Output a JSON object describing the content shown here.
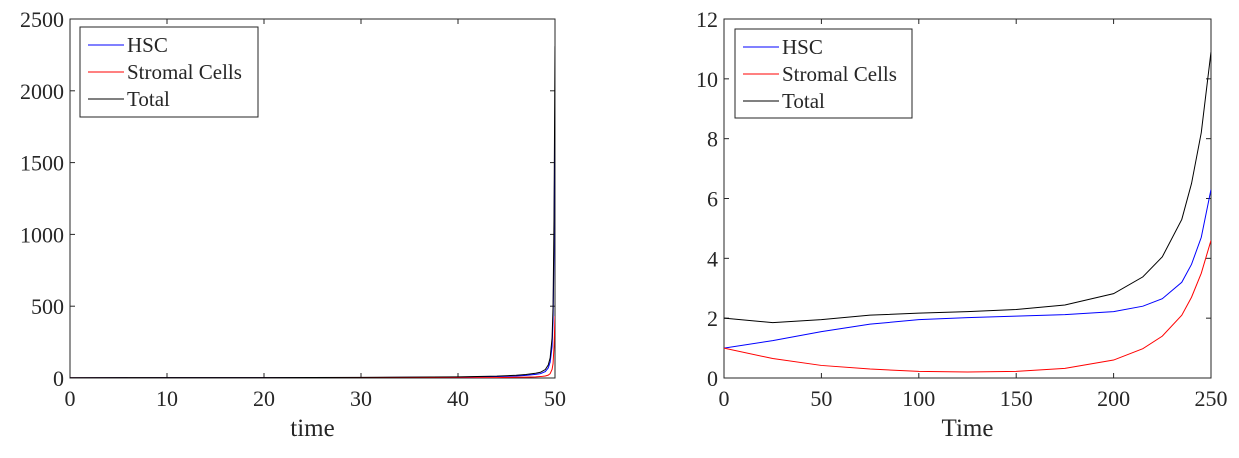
{
  "chart_data": [
    {
      "type": "line",
      "title": "",
      "xlabel": "time",
      "ylabel": "",
      "xlim": [
        0,
        50
      ],
      "ylim": [
        0,
        2500
      ],
      "xticks": [
        0,
        10,
        20,
        30,
        40,
        50
      ],
      "yticks": [
        0,
        500,
        1000,
        1500,
        2000,
        2500
      ],
      "grid": false,
      "legend": "top-left",
      "series": [
        {
          "name": "HSC",
          "color": "#0000ff",
          "x": [
            0,
            10,
            20,
            30,
            40,
            44,
            46,
            47,
            48,
            48.5,
            49,
            49.3,
            49.5,
            49.7,
            49.8,
            49.9,
            49.95,
            50
          ],
          "y": [
            1,
            1.5,
            2,
            3,
            6,
            10,
            14,
            18,
            25,
            30,
            45,
            70,
            110,
            220,
            400,
            900,
            1400,
            1880
          ]
        },
        {
          "name": "Stromal Cells",
          "color": "#ff0000",
          "x": [
            0,
            10,
            20,
            30,
            40,
            44,
            46,
            47,
            48,
            48.5,
            49,
            49.3,
            49.5,
            49.7,
            49.8,
            49.9,
            49.95,
            50
          ],
          "y": [
            1,
            0.8,
            0.8,
            1,
            2,
            3,
            5,
            6,
            8,
            10,
            14,
            20,
            30,
            60,
            100,
            220,
            320,
            430
          ]
        },
        {
          "name": "Total",
          "color": "#000000",
          "x": [
            0,
            10,
            20,
            30,
            40,
            44,
            46,
            47,
            48,
            48.5,
            49,
            49.3,
            49.5,
            49.7,
            49.8,
            49.9,
            49.95,
            50
          ],
          "y": [
            2,
            2.3,
            2.8,
            4,
            8,
            13,
            19,
            24,
            33,
            40,
            59,
            90,
            140,
            280,
            500,
            1120,
            1720,
            2310
          ]
        }
      ]
    },
    {
      "type": "line",
      "title": "",
      "xlabel": "Time",
      "ylabel": "",
      "xlim": [
        0,
        250
      ],
      "ylim": [
        0,
        12
      ],
      "xticks": [
        0,
        50,
        100,
        150,
        200,
        250
      ],
      "yticks": [
        0,
        2,
        4,
        6,
        8,
        10,
        12
      ],
      "grid": false,
      "legend": "top-left",
      "series": [
        {
          "name": "HSC",
          "color": "#0000ff",
          "x": [
            0,
            25,
            50,
            75,
            100,
            125,
            150,
            175,
            200,
            215,
            225,
            235,
            240,
            245,
            250
          ],
          "y": [
            1,
            1.25,
            1.55,
            1.8,
            1.95,
            2.02,
            2.07,
            2.12,
            2.22,
            2.4,
            2.65,
            3.2,
            3.8,
            4.7,
            6.3
          ]
        },
        {
          "name": "Stromal Cells",
          "color": "#ff0000",
          "x": [
            0,
            25,
            50,
            75,
            100,
            125,
            150,
            175,
            200,
            215,
            225,
            235,
            240,
            245,
            250
          ],
          "y": [
            1,
            0.65,
            0.42,
            0.3,
            0.22,
            0.2,
            0.22,
            0.32,
            0.6,
            0.98,
            1.4,
            2.1,
            2.7,
            3.5,
            4.6
          ]
        },
        {
          "name": "Total",
          "color": "#000000",
          "x": [
            0,
            25,
            50,
            75,
            100,
            125,
            150,
            175,
            200,
            215,
            225,
            235,
            240,
            245,
            250
          ],
          "y": [
            2,
            1.85,
            1.95,
            2.1,
            2.17,
            2.22,
            2.29,
            2.44,
            2.82,
            3.38,
            4.05,
            5.3,
            6.5,
            8.2,
            10.9
          ]
        }
      ]
    }
  ]
}
